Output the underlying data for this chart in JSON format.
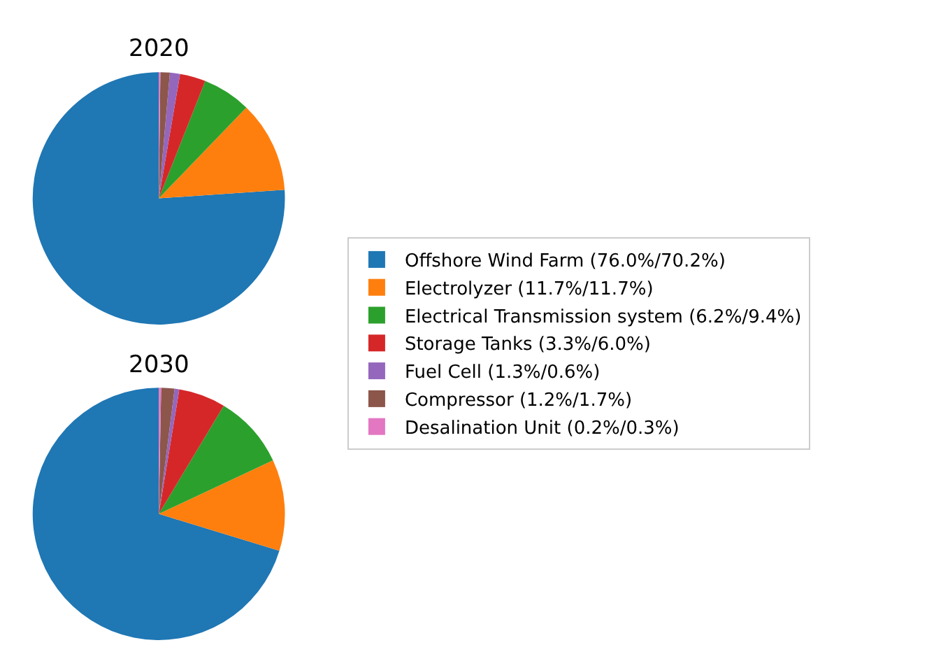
{
  "chart_data": [
    {
      "type": "pie",
      "title": "2020",
      "legend": "right",
      "categories": [
        "Offshore Wind Farm (76.0%/70.2%)",
        "Electrolyzer (11.7%/11.7%)",
        "Electrical Transmission system (6.2%/9.4%)",
        "Storage Tanks (3.3%/6.0%)",
        "Fuel Cell (1.3%/0.6%)",
        "Compressor (1.2%/1.7%)",
        "Desalination Unit (0.2%/0.3%)"
      ],
      "values": [
        76.0,
        11.7,
        6.2,
        3.3,
        1.3,
        1.2,
        0.2
      ],
      "colors": [
        "#1f77b4",
        "#ff7f0e",
        "#2ca02c",
        "#d62728",
        "#9467bd",
        "#8c564b",
        "#e377c2"
      ]
    },
    {
      "type": "pie",
      "title": "2030",
      "values": [
        70.2,
        11.7,
        9.4,
        6.0,
        0.6,
        1.7,
        0.3
      ],
      "colors": [
        "#1f77b4",
        "#ff7f0e",
        "#2ca02c",
        "#d62728",
        "#9467bd",
        "#8c564b",
        "#e377c2"
      ]
    }
  ]
}
